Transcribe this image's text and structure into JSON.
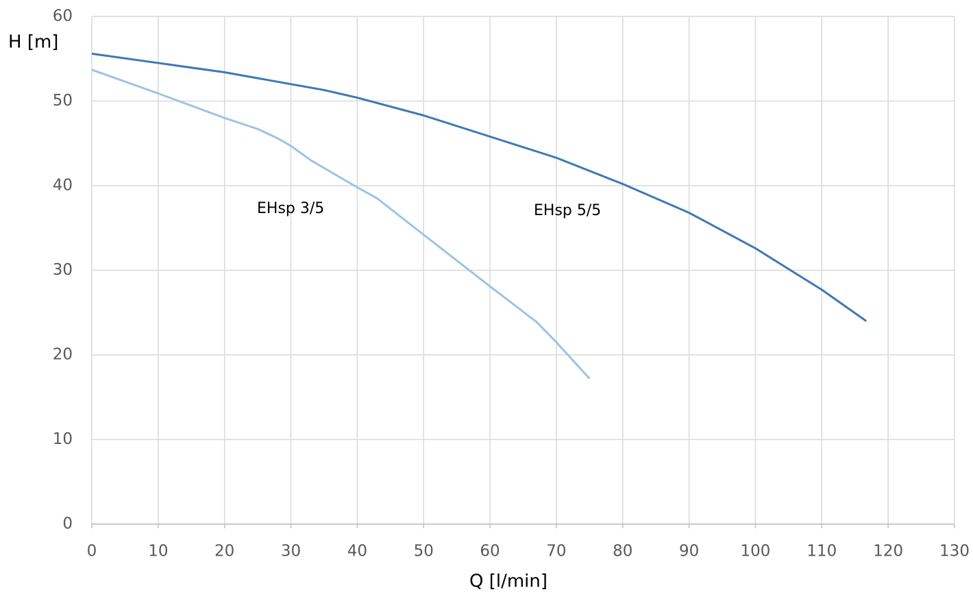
{
  "chart_data": {
    "type": "line",
    "x_label": "H [m]",
    "y_label_note": null,
    "xlabel": "Q [l/min]",
    "ylabel": "H [m]",
    "series": [
      {
        "name": "EHsp 5/5",
        "color": "#3d78b5",
        "x": [
          0,
          10,
          20,
          30,
          35,
          40,
          50,
          60,
          70,
          80,
          90,
          95,
          100,
          110,
          116.7
        ],
        "values": [
          55.6,
          54.5,
          53.4,
          52.0,
          51.3,
          50.4,
          48.3,
          45.8,
          43.3,
          40.2,
          36.8,
          34.7,
          32.6,
          27.7,
          24.0
        ]
      },
      {
        "name": "EHsp 3/5",
        "color": "#9dc3e6",
        "x": [
          0,
          10,
          20,
          25,
          28,
          30,
          33,
          40,
          43,
          50,
          60,
          67,
          70,
          75
        ],
        "values": [
          53.7,
          50.9,
          48.0,
          46.7,
          45.6,
          44.7,
          43.0,
          39.8,
          38.5,
          34.2,
          28.1,
          23.9,
          21.5,
          17.2
        ]
      }
    ],
    "xlim": [
      0,
      130
    ],
    "xticks": [
      0,
      10,
      20,
      30,
      40,
      50,
      60,
      70,
      80,
      90,
      100,
      110,
      120,
      130
    ],
    "ylim": [
      0,
      60
    ],
    "yticks": [
      0,
      10,
      20,
      30,
      40,
      50,
      60
    ],
    "grid": true
  }
}
